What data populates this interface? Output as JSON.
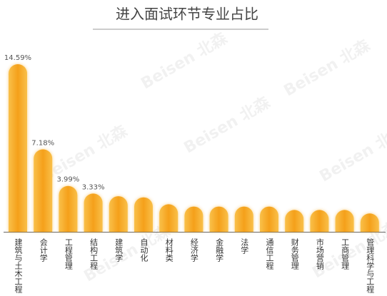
{
  "chart_data": {
    "type": "bar",
    "title": "进入面试环节专业占比",
    "watermark": "Beisen 北森",
    "categories": [
      "建筑与土木工程",
      "会计学",
      "工程管理",
      "结构工程",
      "建筑学",
      "自动化",
      "材料类",
      "经济学",
      "金融学",
      "法学",
      "通信工程",
      "财务管理",
      "市场营销",
      "工商管理",
      "管理科学与工程"
    ],
    "values": [
      14.59,
      7.18,
      3.99,
      3.33,
      3.1,
      3.0,
      2.4,
      2.2,
      2.2,
      2.2,
      2.2,
      1.9,
      1.9,
      1.9,
      1.6
    ],
    "value_labels": [
      "14.59%",
      "7.18%",
      "3.99%",
      "3.33%",
      null,
      null,
      null,
      null,
      null,
      null,
      null,
      null,
      null,
      null,
      null
    ],
    "color": "#f5a01a"
  }
}
